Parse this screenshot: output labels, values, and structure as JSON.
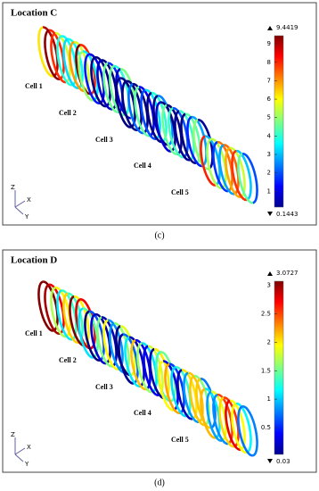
{
  "panels": [
    {
      "title": "Location C",
      "caption": "(c)",
      "colorbar": {
        "max": 9.4419,
        "min": 0.1443,
        "ticks": [
          1,
          2,
          3,
          4,
          5,
          6,
          7,
          8,
          9
        ]
      },
      "cells": [
        "Cell 1",
        "Cell 2",
        "Cell 3",
        "Cell 4",
        "Cell 5"
      ],
      "axes": [
        "Z",
        "X",
        "Y"
      ]
    },
    {
      "title": "Location D",
      "caption": "(d)",
      "colorbar": {
        "max": 3.0727,
        "min": 0.03,
        "ticks": [
          0.5,
          1,
          1.5,
          2,
          2.5,
          3
        ]
      },
      "cells": [
        "Cell 1",
        "Cell 2",
        "Cell 3",
        "Cell 4",
        "Cell 5"
      ],
      "axes": [
        "Z",
        "X",
        "Y"
      ]
    }
  ]
}
